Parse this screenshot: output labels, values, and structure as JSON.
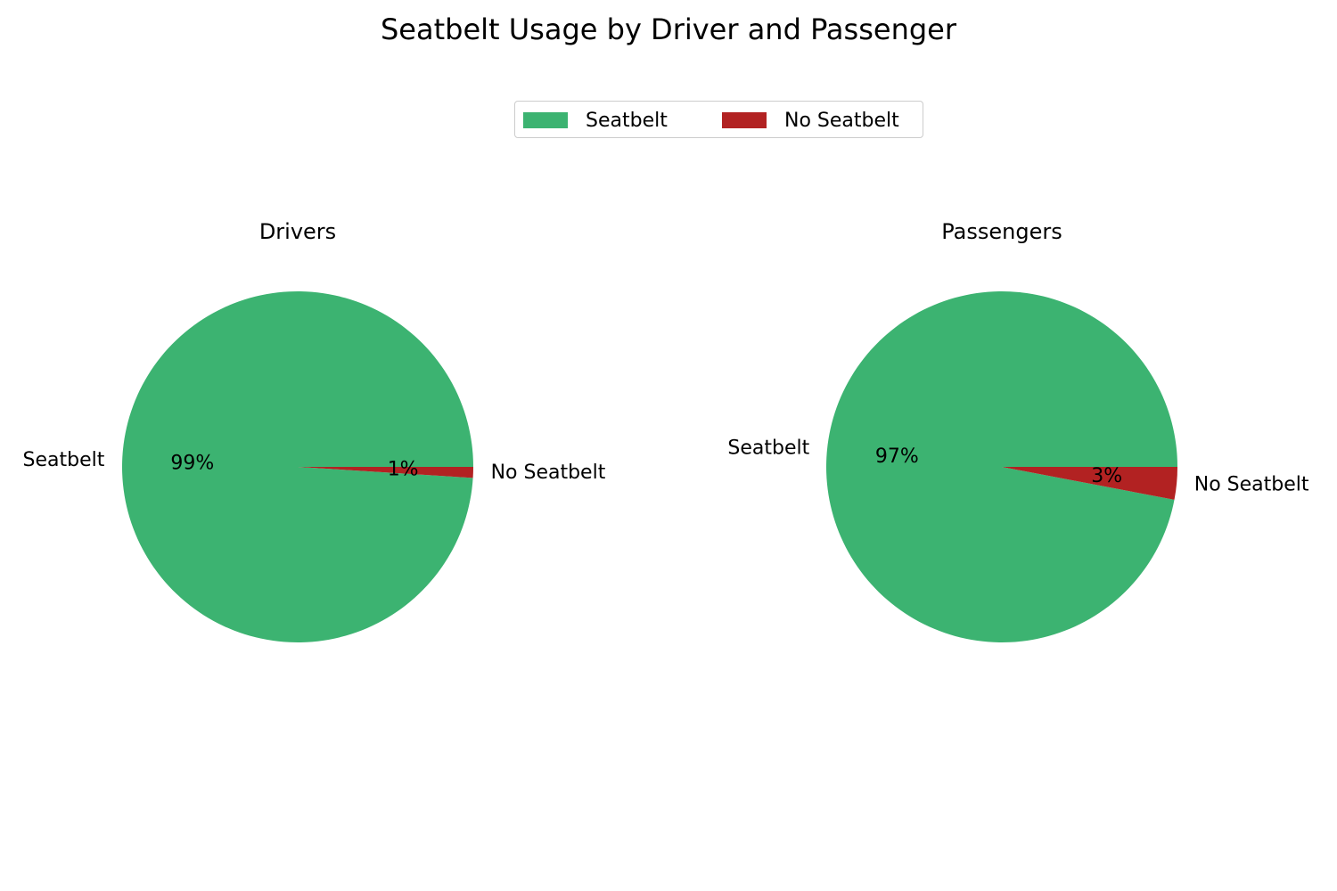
{
  "title": "Seatbelt Usage by Driver and Passenger",
  "legend": {
    "items": [
      {
        "label": "Seatbelt",
        "color": "#3cb371"
      },
      {
        "label": "No Seatbelt",
        "color": "#b22222"
      }
    ]
  },
  "chart_data": [
    {
      "type": "pie",
      "title": "Drivers",
      "labels": [
        "Seatbelt",
        "No Seatbelt"
      ],
      "values": [
        99,
        1
      ],
      "pct_labels": [
        "99%",
        "1%"
      ],
      "colors": [
        "#3cb371",
        "#b22222"
      ]
    },
    {
      "type": "pie",
      "title": "Passengers",
      "labels": [
        "Seatbelt",
        "No Seatbelt"
      ],
      "values": [
        97,
        3
      ],
      "pct_labels": [
        "97%",
        "3%"
      ],
      "colors": [
        "#3cb371",
        "#b22222"
      ]
    }
  ]
}
